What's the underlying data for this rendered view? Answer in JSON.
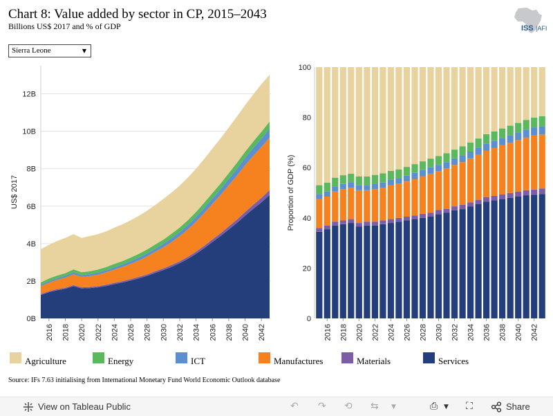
{
  "header": {
    "title": "Chart 8: Value added by sector in CP, 2015–2043",
    "subtitle": "Billions US$ 2017 and % of GDP",
    "logo_text": "ISS|AFI"
  },
  "selector": {
    "value": "Sierra Leone"
  },
  "colors": {
    "Agriculture": "#e8d29e",
    "Energy": "#5cb85c",
    "ICT": "#5b8fd0",
    "Manufactures": "#f5821f",
    "Materials": "#7b5ea7",
    "Services": "#233e7a"
  },
  "legend": [
    "Agriculture",
    "Energy",
    "ICT",
    "Manufactures",
    "Materials",
    "Services"
  ],
  "source": "Source: IFs 7.63 initialising from International Monetary Fund World Economic Outlook database",
  "footer": {
    "view_label": "View on Tableau Public",
    "share_label": "Share"
  },
  "chart_data": [
    {
      "type": "area",
      "stacked": true,
      "ylabel": "US$ 2017",
      "ylim": [
        0,
        13.5
      ],
      "yticks": [
        0,
        2,
        4,
        6,
        8,
        10,
        12
      ],
      "ytick_labels": [
        "0B",
        "2B",
        "4B",
        "6B",
        "8B",
        "10B",
        "12B"
      ],
      "xlim": [
        2015,
        2043
      ],
      "xticks": [
        2016,
        2018,
        2020,
        2022,
        2024,
        2026,
        2028,
        2030,
        2032,
        2034,
        2036,
        2038,
        2040,
        2042
      ],
      "x": [
        2015,
        2016,
        2017,
        2018,
        2019,
        2020,
        2021,
        2022,
        2023,
        2024,
        2025,
        2026,
        2027,
        2028,
        2029,
        2030,
        2031,
        2032,
        2033,
        2034,
        2035,
        2036,
        2037,
        2038,
        2039,
        2040,
        2041,
        2042,
        2043
      ],
      "series": [
        {
          "name": "Services",
          "values": [
            1.25,
            1.4,
            1.5,
            1.58,
            1.72,
            1.6,
            1.62,
            1.66,
            1.73,
            1.83,
            1.92,
            2.02,
            2.14,
            2.27,
            2.43,
            2.58,
            2.75,
            2.95,
            3.18,
            3.45,
            3.75,
            4.08,
            4.4,
            4.75,
            5.1,
            5.48,
            5.85,
            6.2,
            6.6
          ]
        },
        {
          "name": "Materials",
          "values": [
            0.05,
            0.05,
            0.06,
            0.06,
            0.06,
            0.06,
            0.06,
            0.06,
            0.07,
            0.07,
            0.07,
            0.08,
            0.08,
            0.08,
            0.09,
            0.09,
            0.1,
            0.1,
            0.11,
            0.12,
            0.13,
            0.14,
            0.15,
            0.17,
            0.18,
            0.2,
            0.22,
            0.24,
            0.26
          ]
        },
        {
          "name": "Manufactures",
          "values": [
            0.42,
            0.46,
            0.5,
            0.54,
            0.58,
            0.56,
            0.58,
            0.62,
            0.66,
            0.71,
            0.76,
            0.82,
            0.88,
            0.96,
            1.04,
            1.13,
            1.23,
            1.35,
            1.47,
            1.6,
            1.75,
            1.9,
            2.05,
            2.2,
            2.35,
            2.5,
            2.62,
            2.72,
            2.8
          ]
        },
        {
          "name": "ICT",
          "values": [
            0.07,
            0.08,
            0.08,
            0.09,
            0.1,
            0.1,
            0.1,
            0.11,
            0.11,
            0.12,
            0.13,
            0.14,
            0.15,
            0.16,
            0.17,
            0.18,
            0.2,
            0.21,
            0.23,
            0.25,
            0.27,
            0.29,
            0.31,
            0.33,
            0.36,
            0.39,
            0.42,
            0.45,
            0.48
          ]
        },
        {
          "name": "Energy",
          "values": [
            0.13,
            0.14,
            0.15,
            0.15,
            0.16,
            0.15,
            0.16,
            0.16,
            0.17,
            0.18,
            0.18,
            0.19,
            0.2,
            0.21,
            0.22,
            0.23,
            0.24,
            0.25,
            0.26,
            0.27,
            0.28,
            0.29,
            0.3,
            0.31,
            0.32,
            0.33,
            0.34,
            0.36,
            0.38
          ]
        },
        {
          "name": "Agriculture",
          "values": [
            1.78,
            1.8,
            1.85,
            1.88,
            1.88,
            1.83,
            1.88,
            1.89,
            1.91,
            1.94,
            1.97,
            1.99,
            2.03,
            2.07,
            2.11,
            2.17,
            2.2,
            2.24,
            2.28,
            2.31,
            2.34,
            2.38,
            2.41,
            2.44,
            2.47,
            2.49,
            2.52,
            2.55,
            2.5
          ]
        }
      ]
    },
    {
      "type": "bar",
      "stacked": true,
      "ylabel": "Proportion of GDP (%)",
      "ylim": [
        0,
        100
      ],
      "yticks": [
        0,
        20,
        40,
        60,
        80,
        100
      ],
      "xticks": [
        2016,
        2018,
        2020,
        2022,
        2024,
        2026,
        2028,
        2030,
        2032,
        2034,
        2036,
        2038,
        2040,
        2042
      ],
      "categories": [
        2015,
        2016,
        2017,
        2018,
        2019,
        2020,
        2021,
        2022,
        2023,
        2024,
        2025,
        2026,
        2027,
        2028,
        2029,
        2030,
        2031,
        2032,
        2033,
        2034,
        2035,
        2036,
        2037,
        2038,
        2039,
        2040,
        2041,
        2042,
        2043
      ],
      "series": [
        {
          "name": "Services",
          "values": [
            34.5,
            35.5,
            37,
            37.5,
            38,
            36.5,
            37,
            37,
            37.5,
            38,
            38.5,
            39,
            39.5,
            40,
            40.5,
            41.5,
            42,
            43,
            43.5,
            44.5,
            45.5,
            46.5,
            47,
            47.5,
            48,
            48.5,
            49,
            49.2,
            49.5
          ]
        },
        {
          "name": "Materials",
          "values": [
            1.5,
            1.5,
            1.5,
            1.5,
            1.5,
            1.5,
            1.5,
            1.5,
            1.5,
            1.5,
            1.5,
            1.5,
            1.5,
            1.6,
            1.6,
            1.6,
            1.6,
            1.6,
            1.7,
            1.7,
            1.7,
            1.8,
            1.8,
            1.9,
            1.9,
            2,
            2,
            2.1,
            2.2
          ]
        },
        {
          "name": "Manufactures",
          "values": [
            11.5,
            11.5,
            12,
            12.5,
            12.5,
            13,
            12.5,
            13,
            13,
            13.5,
            13.5,
            14,
            14.5,
            15,
            15.5,
            15.5,
            16,
            16.5,
            17,
            17.5,
            18,
            18.5,
            19,
            19.5,
            20,
            20.5,
            21,
            21.5,
            21.5
          ]
        },
        {
          "name": "ICT",
          "values": [
            2,
            2,
            2,
            2,
            2.1,
            2.1,
            2.1,
            2.2,
            2.2,
            2.2,
            2.3,
            2.3,
            2.4,
            2.4,
            2.5,
            2.5,
            2.6,
            2.6,
            2.7,
            2.7,
            2.8,
            2.8,
            2.9,
            2.9,
            3,
            3,
            3.1,
            3.2,
            3.3
          ]
        },
        {
          "name": "Energy",
          "values": [
            3.5,
            3.5,
            3.5,
            3.5,
            3.5,
            3.4,
            3.4,
            3.4,
            3.5,
            3.5,
            3.5,
            3.5,
            3.5,
            3.5,
            3.5,
            3.5,
            3.5,
            3.5,
            3.6,
            3.6,
            3.6,
            3.7,
            3.7,
            3.8,
            3.8,
            3.8,
            3.9,
            3.9,
            4
          ]
        },
        {
          "name": "Agriculture",
          "values": [
            47,
            46,
            44,
            43,
            42.4,
            43.5,
            43.5,
            42.9,
            42.3,
            41.3,
            40.7,
            39.7,
            38.6,
            37.5,
            36.4,
            35.4,
            34.3,
            32.8,
            31.5,
            30,
            28.4,
            26.7,
            25.6,
            24.4,
            23.3,
            22.2,
            21,
            20.1,
            19.5
          ]
        }
      ]
    }
  ]
}
